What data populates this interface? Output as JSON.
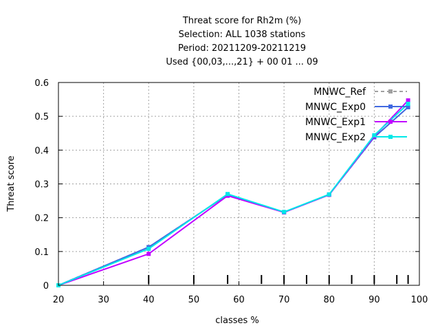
{
  "chart_data": {
    "type": "line",
    "title": [
      "Threat score  for Rh2m (%)",
      "Selection: ALL    1038 stations",
      "Period: 20211209-20211219",
      "Used {00,03,...,21} + 00 01 ... 09"
    ],
    "xlabel": "classes %",
    "ylabel": "Threat score",
    "xlim": [
      20,
      100
    ],
    "ylim": [
      0,
      0.6
    ],
    "xticks": [
      20,
      30,
      40,
      50,
      60,
      70,
      80,
      90,
      100
    ],
    "xtick_labels": [
      "20",
      "30",
      "40",
      "50",
      "60",
      "70",
      "80",
      "90",
      "100"
    ],
    "yticks": [
      0,
      0.1,
      0.2,
      0.3,
      0.4,
      0.5,
      0.6
    ],
    "ytick_labels": [
      "0",
      "0.1",
      "0.2",
      "0.3",
      "0.4",
      "0.5",
      "0.6"
    ],
    "class_marks": [
      40,
      50,
      57.5,
      65,
      70,
      75,
      80,
      85,
      90,
      95,
      97.5
    ],
    "grid": true,
    "legend_position": "top-right",
    "x": [
      20,
      40,
      57.5,
      70,
      80,
      90,
      97.5
    ],
    "series": [
      {
        "name": "MNWC_Ref",
        "color": "#a0a0a0",
        "dash": true,
        "values": [
          0.0,
          0.113,
          0.268,
          0.216,
          0.268,
          0.438,
          0.527
        ]
      },
      {
        "name": "MNWC_Exp0",
        "color": "#4169e1",
        "dash": false,
        "values": [
          0.0,
          0.113,
          0.268,
          0.216,
          0.268,
          0.438,
          0.527
        ]
      },
      {
        "name": "MNWC_Exp1",
        "color": "#c000ff",
        "dash": false,
        "values": [
          0.0,
          0.093,
          0.265,
          0.216,
          0.268,
          0.441,
          0.547
        ]
      },
      {
        "name": "MNWC_Exp2",
        "color": "#00e8e8",
        "dash": false,
        "values": [
          0.0,
          0.108,
          0.27,
          0.217,
          0.269,
          0.444,
          0.537
        ]
      }
    ]
  }
}
